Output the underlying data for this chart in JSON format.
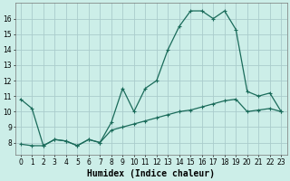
{
  "xlabel": "Humidex (Indice chaleur)",
  "bg_color": "#cceee8",
  "grid_color": "#aacccc",
  "line_color": "#1a6b5a",
  "xlim": [
    -0.5,
    23.5
  ],
  "ylim": [
    7.2,
    17.0
  ],
  "yticks": [
    8,
    9,
    10,
    11,
    12,
    13,
    14,
    15,
    16
  ],
  "xticks": [
    0,
    1,
    2,
    3,
    4,
    5,
    6,
    7,
    8,
    9,
    10,
    11,
    12,
    13,
    14,
    15,
    16,
    17,
    18,
    19,
    20,
    21,
    22,
    23
  ],
  "line1_x": [
    0,
    1,
    2,
    3,
    4,
    5,
    6,
    7,
    8,
    9,
    10,
    11,
    12,
    13,
    14,
    15,
    16,
    17,
    18,
    19,
    20,
    21,
    22,
    23
  ],
  "line1_y": [
    10.8,
    10.2,
    7.8,
    8.2,
    8.1,
    7.8,
    8.2,
    8.0,
    9.3,
    11.5,
    10.0,
    11.5,
    12.0,
    14.0,
    15.5,
    16.5,
    16.5,
    16.0,
    16.5,
    15.3,
    11.3,
    11.0,
    11.2,
    10.0
  ],
  "line2_x": [
    0,
    1,
    2,
    3,
    4,
    5,
    6,
    7,
    8,
    9,
    10,
    11,
    12,
    13,
    14,
    15,
    16,
    17,
    18,
    19,
    20,
    21,
    22,
    23
  ],
  "line2_y": [
    7.9,
    7.8,
    7.8,
    8.2,
    8.1,
    7.8,
    8.2,
    8.0,
    8.8,
    9.0,
    9.2,
    9.4,
    9.6,
    9.8,
    10.0,
    10.1,
    10.3,
    10.5,
    10.7,
    10.8,
    10.0,
    10.1,
    10.2,
    10.0
  ],
  "axis_fontsize": 6.5,
  "tick_fontsize": 5.5,
  "xlabel_fontsize": 7
}
